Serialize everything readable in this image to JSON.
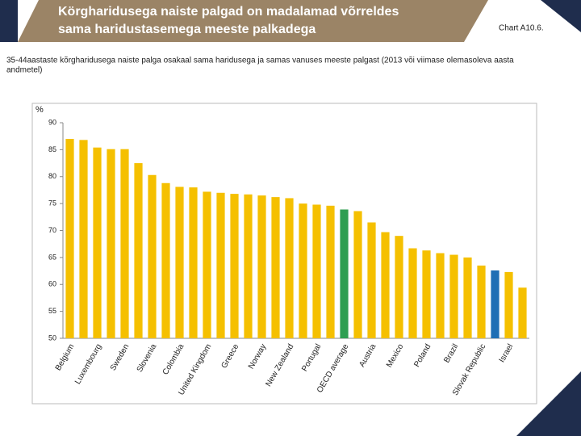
{
  "chart_data": {
    "type": "bar",
    "title": [
      "Körgharidusega naiste palgad on madalamad võrreldes",
      "sama haridustasemega meeste palkadega"
    ],
    "chart_label": "Chart A10.6.",
    "subtitle": [
      "35-44aastaste kõrgharidusega naiste palga osakaal sama haridusega ja samas vanuses meeste palgast (2013 või viimase olemasoleva aasta",
      "andmetel)"
    ],
    "ylabel": "%",
    "categories": [
      "Belgium",
      null,
      "Luxembourg",
      null,
      "Sweden",
      null,
      "Slovenia",
      null,
      "Colombia",
      null,
      "United Kingdom",
      null,
      "Greece",
      null,
      "Norway",
      null,
      "New Zealand",
      null,
      "Portugal",
      null,
      "OECD average",
      null,
      "Austria",
      null,
      "Mexico",
      null,
      "Poland",
      null,
      "Brazil",
      null,
      "Slovak Republic",
      null,
      "Israel",
      null
    ],
    "values": [
      87,
      86.8,
      85.4,
      85.1,
      85.1,
      82.5,
      80.3,
      78.8,
      78.1,
      78,
      77.2,
      77,
      76.8,
      76.7,
      76.5,
      76.2,
      76,
      75,
      74.8,
      74.6,
      73.9,
      73.6,
      71.5,
      69.7,
      69,
      66.7,
      66.3,
      65.8,
      65.5,
      65,
      63.5,
      62.6,
      62.3,
      59.4
    ],
    "colors": [
      "#f5c000",
      "#f5c000",
      "#f5c000",
      "#f5c000",
      "#f5c000",
      "#f5c000",
      "#f5c000",
      "#f5c000",
      "#f5c000",
      "#f5c000",
      "#f5c000",
      "#f5c000",
      "#f5c000",
      "#f5c000",
      "#f5c000",
      "#f5c000",
      "#f5c000",
      "#f5c000",
      "#f5c000",
      "#f5c000",
      "#2e9e52",
      "#f5c000",
      "#f5c000",
      "#f5c000",
      "#f5c000",
      "#f5c000",
      "#f5c000",
      "#f5c000",
      "#f5c000",
      "#f5c000",
      "#f5c000",
      "#1f6fb5",
      "#f5c000",
      "#f5c000"
    ],
    "ylim": [
      50,
      90
    ],
    "yticks": [
      50,
      55,
      60,
      65,
      70,
      75,
      80,
      85,
      90
    ],
    "grid": false
  }
}
